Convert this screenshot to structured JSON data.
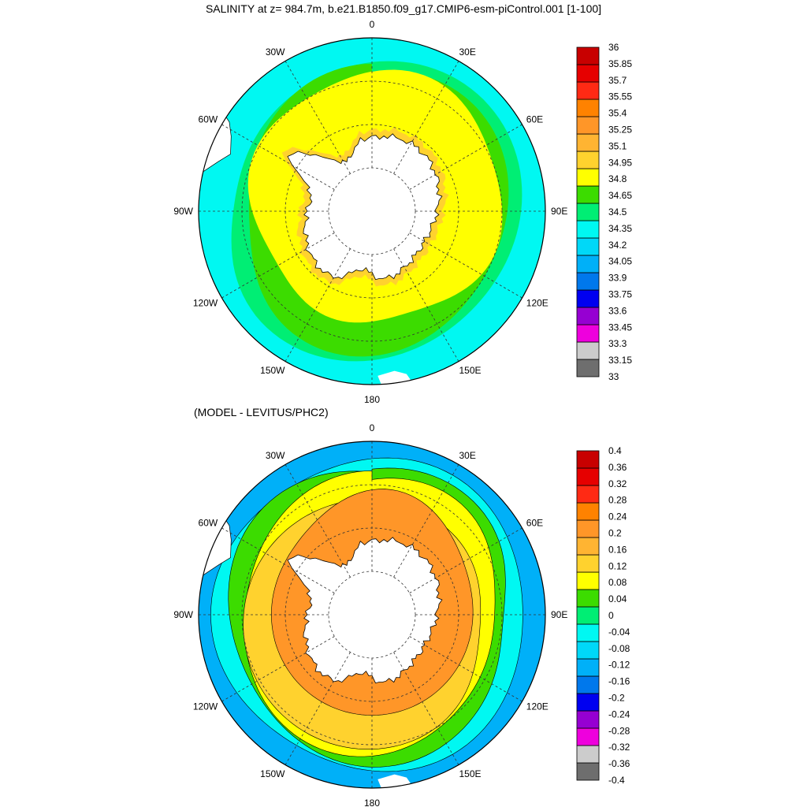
{
  "title": "SALINITY at z= 984.7m, b.e21.B1850.f09_g17.CMIP6-esm-piControl.001 [1-100]",
  "subtitle": "(MODEL - LEVITUS/PHC2)",
  "lon_labels": [
    {
      "lon": 0,
      "text": "0"
    },
    {
      "lon": 30,
      "text": "30E"
    },
    {
      "lon": 60,
      "text": "60E"
    },
    {
      "lon": 90,
      "text": "90E"
    },
    {
      "lon": 120,
      "text": "120E"
    },
    {
      "lon": 150,
      "text": "150E"
    },
    {
      "lon": 180,
      "text": "180"
    },
    {
      "lon": -150,
      "text": "150W"
    },
    {
      "lon": -120,
      "text": "120W"
    },
    {
      "lon": -90,
      "text": "90W"
    },
    {
      "lon": -60,
      "text": "60W"
    },
    {
      "lon": -30,
      "text": "30W"
    }
  ],
  "colors": {
    "land": "#ffffff",
    "frame": "#000000",
    "top_palette": [
      "#6e6e6e",
      "#cccccc",
      "#ee00dd",
      "#9600d2",
      "#0000f0",
      "#0078ec",
      "#00b0f8",
      "#00d8f8",
      "#00f8f2",
      "#00ee74",
      "#3cdc00",
      "#ffff00",
      "#ffd22e",
      "#ffb432",
      "#ff9628",
      "#ff8200",
      "#ff2a14",
      "#e60000",
      "#c80000"
    ],
    "bottom_palette": [
      "#6e6e6e",
      "#cccccc",
      "#ee00dd",
      "#9600d2",
      "#0000f0",
      "#0078ec",
      "#00b0f8",
      "#00d8f8",
      "#00f8f2",
      "#00ee74",
      "#3cdc00",
      "#ffff00",
      "#ffd22e",
      "#ffb432",
      "#ff9628",
      "#ff8200",
      "#ff2a14",
      "#e60000",
      "#c80000"
    ]
  },
  "top_colorbar": {
    "labels": [
      "33",
      "33.15",
      "33.3",
      "33.45",
      "33.6",
      "33.75",
      "33.9",
      "34.05",
      "34.2",
      "34.35",
      "34.5",
      "34.65",
      "34.8",
      "34.95",
      "35.1",
      "35.25",
      "35.4",
      "35.55",
      "35.7",
      "35.85",
      "36"
    ]
  },
  "bottom_colorbar": {
    "labels": [
      "-0.4",
      "-0.36",
      "-0.32",
      "-0.28",
      "-0.24",
      "-0.2",
      "-0.16",
      "-0.12",
      "-0.08",
      "-0.04",
      "0",
      "0.04",
      "0.08",
      "0.12",
      "0.16",
      "0.2",
      "0.24",
      "0.28",
      "0.32",
      "0.36",
      "0.4"
    ]
  },
  "top_map": {
    "zones": [
      {
        "name": "shelf-ring",
        "color_index": 12
      },
      {
        "name": "cold-outer-ring",
        "color_index": 8
      },
      {
        "name": "mid-ring",
        "color_index": 9
      },
      {
        "name": "green-ring",
        "color_index": 10
      },
      {
        "name": "yellow-core",
        "color_index": 11
      }
    ]
  },
  "bottom_map": {
    "zones": [
      {
        "name": "outer-cold",
        "color_index": 6
      },
      {
        "name": "cyan-band",
        "color_index": 8
      },
      {
        "name": "green-band",
        "color_index": 10
      },
      {
        "name": "yellow-band",
        "color_index": 11
      },
      {
        "name": "warm-interior",
        "color_index": 12
      },
      {
        "name": "weddell-orange",
        "color_index": 14
      }
    ]
  }
}
